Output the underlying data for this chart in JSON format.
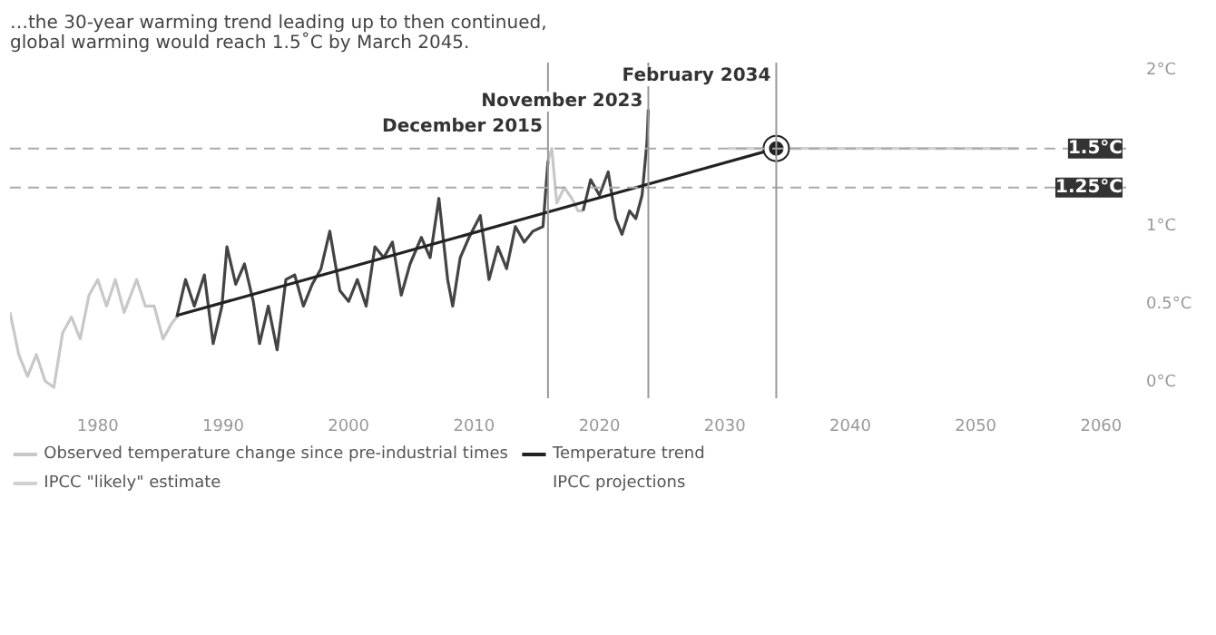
{
  "chart_data": {
    "type": "line",
    "subtitle": "…the 30-year warming trend leading up to then continued,\nglobal warming would reach 1.5˚C by March 2045.",
    "annotations": [
      "IPCC projections"
    ],
    "xlim": [
      1973,
      2062
    ],
    "ylim": [
      -0.1,
      2.05
    ],
    "xticks": [
      1980,
      1990,
      2000,
      2010,
      2020,
      2030,
      2040,
      2050,
      2060
    ],
    "yticks": [
      {
        "value": 0,
        "label": "0°C"
      },
      {
        "value": 0.5,
        "label": "0.5°C"
      },
      {
        "value": 1,
        "label": "1°C"
      },
      {
        "value": 2,
        "label": "2°C"
      }
    ],
    "grid": false,
    "legend": "bottom",
    "series": [
      {
        "name": "Observed temperature change since pre-industrial times",
        "color": "#c8c8c8",
        "x": [
          1973.0,
          1973.7,
          1974.4,
          1975.1,
          1975.8,
          1976.5,
          1977.2,
          1977.9,
          1978.6,
          1979.3,
          1980.0,
          1980.7,
          1981.4,
          1982.1,
          1983.1,
          1983.8,
          1984.5,
          1985.2,
          1985.9,
          1986.3,
          null,
          2015.9,
          2016.2,
          2016.6,
          2017.2,
          2017.8,
          2018.3,
          2018.7
        ],
        "values": [
          0.45,
          0.18,
          0.04,
          0.18,
          0.01,
          -0.03,
          0.32,
          0.42,
          0.28,
          0.56,
          0.66,
          0.49,
          0.66,
          0.45,
          0.66,
          0.49,
          0.49,
          0.28,
          0.38,
          0.42,
          null,
          1.42,
          1.5,
          1.15,
          1.25,
          1.18,
          1.1,
          1.1
        ]
      },
      {
        "color": "#444444",
        "x": [
          1986.3,
          1987.0,
          1987.7,
          1988.5,
          1989.2,
          1989.9,
          1990.3,
          1991.0,
          1991.7,
          1992.4,
          1992.9,
          1993.6,
          1994.3,
          1995.0,
          1995.7,
          1996.4,
          1997.1,
          1997.8,
          1998.5,
          1999.3,
          2000.0,
          2000.7,
          2001.4,
          2002.1,
          2002.8,
          2003.5,
          2004.2,
          2004.9,
          2005.8,
          2006.5,
          2007.2,
          2007.9,
          2008.3,
          2008.9,
          2009.6,
          2010.5,
          2011.2,
          2011.9,
          2012.6,
          2013.3,
          2014.0,
          2014.7,
          2015.5,
          2015.9,
          null,
          2018.7,
          2019.3,
          2020.0,
          2020.7,
          2021.3,
          2021.8,
          2022.4,
          2022.9,
          2023.4,
          2023.8,
          2023.9
        ],
        "values": [
          0.42,
          0.66,
          0.49,
          0.69,
          0.25,
          0.49,
          0.87,
          0.63,
          0.76,
          0.52,
          0.25,
          0.49,
          0.21,
          0.66,
          0.69,
          0.49,
          0.63,
          0.73,
          0.97,
          0.59,
          0.52,
          0.66,
          0.49,
          0.87,
          0.8,
          0.9,
          0.56,
          0.76,
          0.93,
          0.8,
          1.18,
          0.66,
          0.49,
          0.8,
          0.93,
          1.07,
          0.66,
          0.87,
          0.73,
          1.0,
          0.9,
          0.97,
          1.0,
          1.42,
          null,
          1.1,
          1.3,
          1.2,
          1.35,
          1.05,
          0.95,
          1.1,
          1.05,
          1.2,
          1.55,
          1.75
        ]
      },
      {
        "name": "Temperature trend",
        "color": "#222222",
        "x": [
          1986.3,
          2034.1
        ],
        "values": [
          0.43,
          1.5
        ]
      },
      {
        "name": "IPCC \"likely\" estimate",
        "color": "#d0d0d0",
        "x": [
          2030.3,
          2053.4
        ],
        "values": [
          1.5,
          1.5
        ]
      },
      {
        "type": "scatter",
        "marker": "circle",
        "color": "#222222",
        "x": [
          2034.1
        ],
        "values": [
          1.5
        ]
      }
    ],
    "ref_lines": [
      {
        "axis": "y",
        "value": 1.5,
        "label": "1.5°C",
        "color": "#aaaaaa",
        "line_style": "dashed"
      },
      {
        "axis": "y",
        "value": 1.25,
        "label": "1.25°C",
        "color": "#aaaaaa",
        "line_style": "dashed"
      },
      {
        "axis": "x",
        "value": 2015.9,
        "label": "December 2015",
        "color": "#999999"
      },
      {
        "axis": "x",
        "value": 2023.9,
        "label": "November 2023",
        "color": "#999999"
      },
      {
        "axis": "x",
        "value": 2034.1,
        "label": "February 2034",
        "color": "#999999"
      }
    ]
  }
}
